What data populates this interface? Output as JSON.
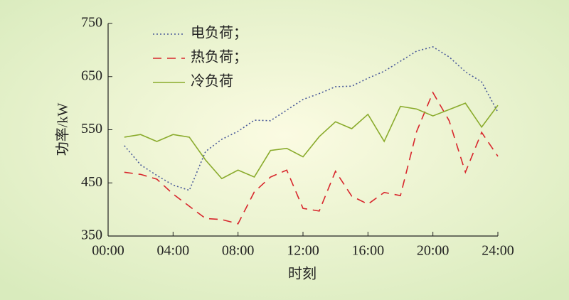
{
  "chart_data": {
    "type": "line",
    "x_label": "时刻",
    "y_label": "功率/kW",
    "x": [
      1,
      2,
      3,
      4,
      5,
      6,
      7,
      8,
      9,
      10,
      11,
      12,
      13,
      14,
      15,
      16,
      17,
      18,
      19,
      20,
      21,
      22,
      23,
      24
    ],
    "xlim": [
      0,
      24
    ],
    "xticks": [
      {
        "value": 0,
        "label": "00:00"
      },
      {
        "value": 4,
        "label": "04:00"
      },
      {
        "value": 8,
        "label": "08:00"
      },
      {
        "value": 12,
        "label": "12:00"
      },
      {
        "value": 16,
        "label": "16:00"
      },
      {
        "value": 20,
        "label": "20:00"
      },
      {
        "value": 24,
        "label": "24:00"
      }
    ],
    "ylim": [
      350,
      750
    ],
    "yticks": [
      350,
      450,
      550,
      650,
      750
    ],
    "series": [
      {
        "name": "电负荷；",
        "color": "#4a5a9a",
        "dash": "dotted",
        "values": [
          520,
          484,
          464,
          446,
          436,
          509,
          532,
          547,
          568,
          567,
          587,
          607,
          618,
          631,
          632,
          647,
          660,
          679,
          698,
          706,
          687,
          659,
          640,
          583
        ]
      },
      {
        "name": "热负荷；",
        "color": "#d8262c",
        "dash": "dashed",
        "values": [
          470,
          466,
          457,
          429,
          406,
          383,
          381,
          373,
          433,
          461,
          474,
          402,
          397,
          472,
          425,
          410,
          432,
          426,
          547,
          620,
          567,
          470,
          545,
          500
        ]
      },
      {
        "name": "冷负荷",
        "color": "#8aab2c",
        "dash": "solid",
        "values": [
          536,
          541,
          528,
          541,
          536,
          493,
          458,
          474,
          461,
          511,
          515,
          499,
          537,
          565,
          552,
          579,
          528,
          594,
          589,
          576,
          588,
          600,
          555,
          596
        ]
      }
    ]
  }
}
